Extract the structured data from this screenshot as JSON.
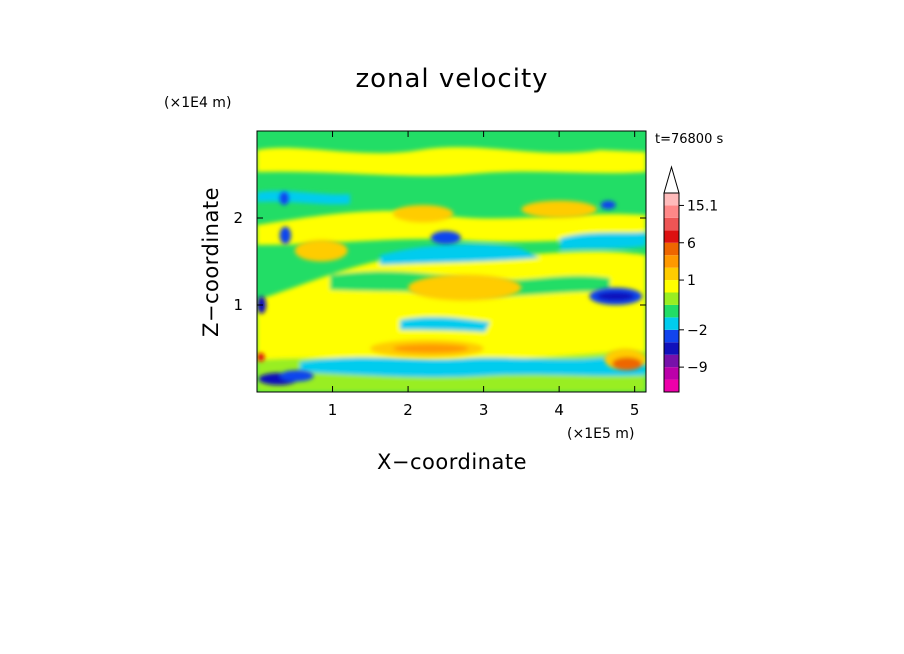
{
  "chart_data": {
    "type": "heatmap",
    "title": "zonal velocity",
    "xlabel": "X−coordinate",
    "ylabel": "Z−coordinate",
    "x_unit": "(×1E5 m)",
    "y_unit": "(×1E4 m)",
    "time_label": "t=76800 s",
    "xlim": [
      0,
      5.15
    ],
    "ylim": [
      0,
      3.0
    ],
    "x_ticks": [
      1,
      2,
      3,
      4,
      5
    ],
    "y_ticks": [
      1,
      2
    ],
    "colorbar": {
      "colors": [
        "#ee00aa",
        "#bb00aa",
        "#7711aa",
        "#1111bb",
        "#1144ee",
        "#00ccee",
        "#22dd66",
        "#99ee22",
        "#ffff00",
        "#ffcc00",
        "#ff9900",
        "#ee6600",
        "#dd1111",
        "#ee5555",
        "#ff8888",
        "#ffbbbb"
      ],
      "labels": [
        {
          "text": "−9",
          "after_band": 2
        },
        {
          "text": "−2",
          "after_band": 5
        },
        {
          "text": "1",
          "after_band": 9
        },
        {
          "text": "6",
          "after_band": 12
        },
        {
          "text": "15.1",
          "after_band": 15
        }
      ],
      "extend": "max"
    },
    "regions": [
      {
        "level": 3,
        "x": [
          0.02,
          0.55
        ],
        "z": [
          0.08,
          0.22
        ]
      },
      {
        "level": 4,
        "x": [
          0.3,
          0.75
        ],
        "z": [
          0.12,
          0.25
        ]
      },
      {
        "level": 3,
        "x": [
          0.0,
          0.12
        ],
        "z": [
          0.9,
          1.1
        ]
      },
      {
        "level": 4,
        "x": [
          0.3,
          0.45
        ],
        "z": [
          1.7,
          1.9
        ]
      },
      {
        "level": 4,
        "x": [
          0.3,
          0.42
        ],
        "z": [
          2.15,
          2.3
        ]
      },
      {
        "level": 4,
        "x": [
          2.3,
          2.7
        ],
        "z": [
          1.7,
          1.85
        ]
      },
      {
        "level": 4,
        "x": [
          4.4,
          5.1
        ],
        "z": [
          1.0,
          1.2
        ]
      },
      {
        "level": 3,
        "x": [
          4.5,
          5.0
        ],
        "z": [
          1.05,
          1.15
        ]
      },
      {
        "level": 4,
        "x": [
          4.55,
          4.75
        ],
        "z": [
          2.1,
          2.2
        ]
      },
      {
        "level": 9,
        "x": [
          1.5,
          3.0
        ],
        "z": [
          0.4,
          0.6
        ]
      },
      {
        "level": 10,
        "x": [
          1.8,
          2.8
        ],
        "z": [
          0.45,
          0.55
        ]
      },
      {
        "level": 9,
        "x": [
          2.0,
          3.5
        ],
        "z": [
          1.05,
          1.35
        ]
      },
      {
        "level": 9,
        "x": [
          4.6,
          5.15
        ],
        "z": [
          0.25,
          0.5
        ]
      },
      {
        "level": 11,
        "x": [
          4.7,
          5.1
        ],
        "z": [
          0.25,
          0.4
        ]
      },
      {
        "level": 9,
        "x": [
          0.5,
          1.2
        ],
        "z": [
          1.5,
          1.75
        ]
      },
      {
        "level": 9,
        "x": [
          1.8,
          2.6
        ],
        "z": [
          1.95,
          2.15
        ]
      },
      {
        "level": 9,
        "x": [
          3.5,
          4.5
        ],
        "z": [
          2.0,
          2.2
        ]
      },
      {
        "level": 12,
        "x": [
          0.0,
          0.1
        ],
        "z": [
          0.35,
          0.45
        ]
      }
    ]
  }
}
